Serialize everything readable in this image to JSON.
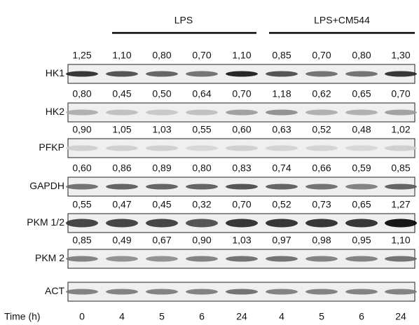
{
  "groups": [
    {
      "label": "LPS"
    },
    {
      "label": "LPS+CM544"
    }
  ],
  "rows": [
    {
      "label": "HK1",
      "values": [
        "1,25",
        "1,10",
        "0,80",
        "0,70",
        "1,10",
        "0,85",
        "0,70",
        "0,80",
        "1,30"
      ]
    },
    {
      "label": "HK2",
      "values": [
        "0,80",
        "0,45",
        "0,50",
        "0,64",
        "0,70",
        "1,18",
        "0,62",
        "0,65",
        "0,70"
      ]
    },
    {
      "label": "PFKP",
      "values": [
        "0,90",
        "1,05",
        "1,03",
        "0,55",
        "0,60",
        "0,63",
        "0,52",
        "0,48",
        "1,02"
      ]
    },
    {
      "label": "GAPDH",
      "values": [
        "0,60",
        "0,86",
        "0,89",
        "0,80",
        "0,83",
        "0,74",
        "0,66",
        "0,59",
        "0,85"
      ]
    },
    {
      "label": "PKM 1/2",
      "values": [
        "0,55",
        "0,47",
        "0,45",
        "0,32",
        "0,70",
        "0,52",
        "0,73",
        "0,65",
        "1,27"
      ]
    },
    {
      "label": "PKM 2",
      "values": [
        "0,85",
        "0,49",
        "0,67",
        "0,90",
        "1,03",
        "0,97",
        "0,98",
        "0,95",
        "1,10"
      ]
    },
    {
      "label": "ACT"
    }
  ],
  "time": {
    "label": "Time (h)",
    "lanes": [
      "0",
      "4",
      "5",
      "6",
      "24",
      "4",
      "5",
      "6",
      "24"
    ]
  }
}
